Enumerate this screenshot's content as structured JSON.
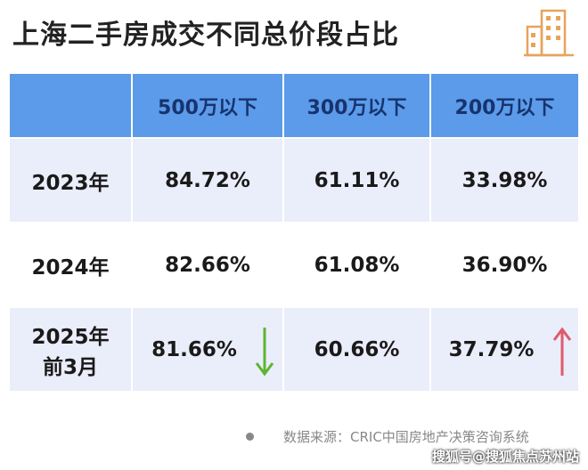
{
  "header": {
    "title": "上海二手房成交不同总价段占比"
  },
  "table": {
    "columns": [
      "500万以下",
      "300万以下",
      "200万以下"
    ],
    "rows": [
      {
        "label": [
          "2023年"
        ],
        "cells": [
          "84.72%",
          "61.11%",
          "33.98%"
        ]
      },
      {
        "label": [
          "2024年"
        ],
        "cells": [
          "82.66%",
          "61.08%",
          "36.90%"
        ]
      },
      {
        "label": [
          "2025年",
          "前3月"
        ],
        "cells": [
          "81.66%",
          "60.66%",
          "37.79%"
        ]
      }
    ]
  },
  "footer": {
    "source": "数据来源：CRIC中国房地产决策咨询系统",
    "watermark": "搜狐号@搜狐焦点苏州站"
  }
}
